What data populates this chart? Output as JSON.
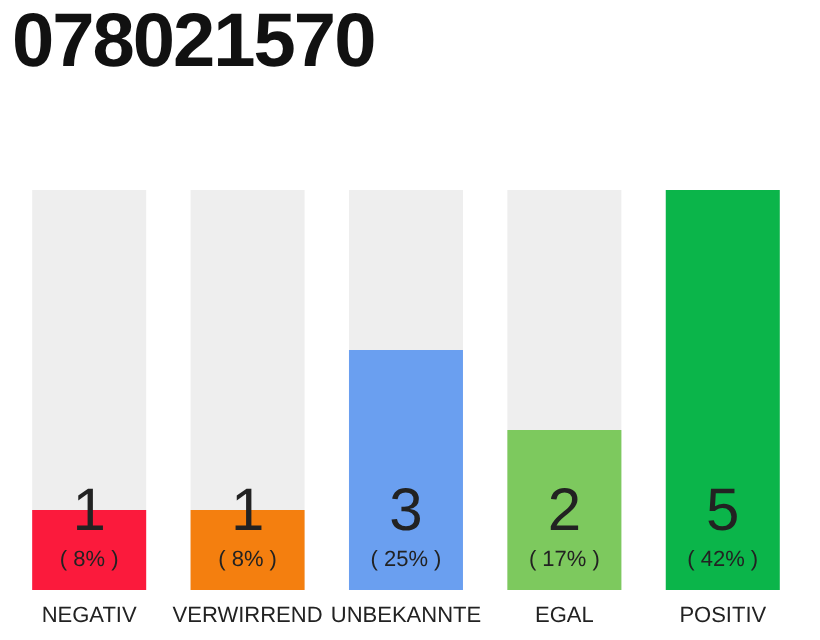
{
  "chart_data": {
    "type": "bar",
    "title": "078021570",
    "categories": [
      "NEGATIV",
      "VERWIRREND",
      "UNBEKANNTE",
      "EGAL",
      "POSITIV"
    ],
    "values": [
      1,
      1,
      3,
      2,
      5
    ],
    "colors": [
      "#fb1a3c",
      "#f47f0f",
      "#6a9ff0",
      "#7dc95e",
      "#0bb54a"
    ],
    "data_labels": true,
    "grid": false,
    "annotations": [
      "( 8% )",
      "( 8% )",
      "( 25% )",
      "( 17% )",
      "( 42% )"
    ]
  }
}
